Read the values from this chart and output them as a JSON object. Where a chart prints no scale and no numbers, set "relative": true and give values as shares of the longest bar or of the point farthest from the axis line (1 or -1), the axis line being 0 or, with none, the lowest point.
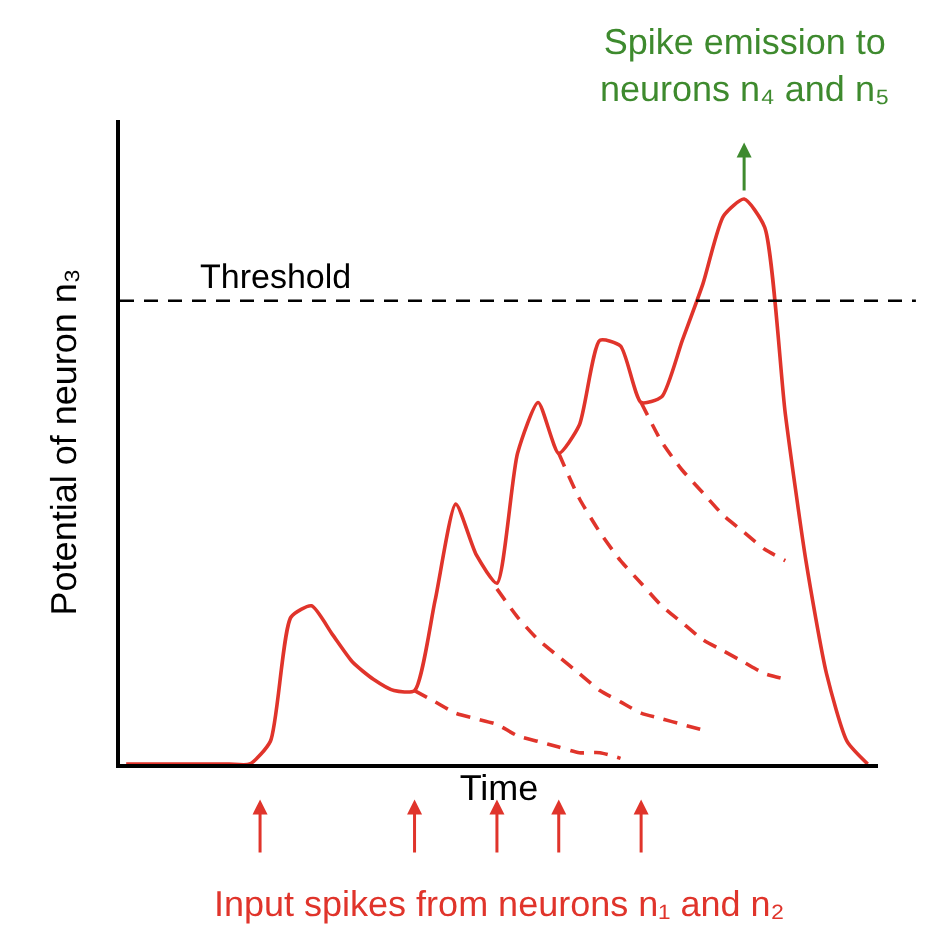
{
  "chart_data": {
    "type": "line",
    "relative": true,
    "xlabel": "Time",
    "ylabel": "Potential of neuron n₃",
    "categories": [
      null,
      null,
      null,
      null,
      null,
      null,
      null,
      null,
      null,
      null,
      null,
      null,
      null,
      null,
      null,
      null,
      null,
      null,
      null,
      null,
      null,
      null,
      null,
      null,
      null,
      null,
      null,
      null,
      null,
      null,
      null,
      null,
      null,
      null,
      null,
      null,
      null
    ],
    "series": [
      {
        "color": "#e0342b",
        "line_style": "solid",
        "values": [
          0,
          0,
          0,
          0,
          0,
          0,
          0,
          0.04,
          0.26,
          0.28,
          0.23,
          0.18,
          0.15,
          0.13,
          0.13,
          0.29,
          0.46,
          0.37,
          0.32,
          0.55,
          0.64,
          0.55,
          0.6,
          0.75,
          0.74,
          0.64,
          0.65,
          0.75,
          0.85,
          0.97,
          1.0,
          0.95,
          0.62,
          0.36,
          0.16,
          0.04,
          0
        ]
      },
      {
        "color": "#e0342b",
        "line_style": "dashed",
        "values": [
          null,
          null,
          null,
          null,
          null,
          null,
          null,
          null,
          null,
          null,
          null,
          null,
          null,
          null,
          0.13,
          0.11,
          0.09,
          0.08,
          0.07,
          0.05,
          0.04,
          0.03,
          0.02,
          0.02,
          0.01,
          null,
          null,
          null,
          null,
          null,
          null,
          null,
          null,
          null,
          null,
          null,
          null
        ]
      },
      {
        "color": "#e0342b",
        "line_style": "dashed",
        "values": [
          null,
          null,
          null,
          null,
          null,
          null,
          null,
          null,
          null,
          null,
          null,
          null,
          null,
          null,
          null,
          null,
          null,
          null,
          0.31,
          0.26,
          0.22,
          0.19,
          0.16,
          0.13,
          0.11,
          0.09,
          0.08,
          0.07,
          0.06,
          null,
          null,
          null,
          null,
          null,
          null,
          null,
          null
        ]
      },
      {
        "color": "#e0342b",
        "line_style": "dashed",
        "values": [
          null,
          null,
          null,
          null,
          null,
          null,
          null,
          null,
          null,
          null,
          null,
          null,
          null,
          null,
          null,
          null,
          null,
          null,
          null,
          null,
          null,
          0.55,
          0.47,
          0.41,
          0.36,
          0.32,
          0.28,
          0.25,
          0.22,
          0.2,
          0.18,
          0.16,
          0.15,
          null,
          null,
          null,
          null
        ]
      },
      {
        "color": "#e0342b",
        "line_style": "dashed",
        "values": [
          null,
          null,
          null,
          null,
          null,
          null,
          null,
          null,
          null,
          null,
          null,
          null,
          null,
          null,
          null,
          null,
          null,
          null,
          null,
          null,
          null,
          null,
          null,
          null,
          null,
          0.64,
          0.57,
          0.52,
          0.48,
          0.44,
          0.41,
          0.38,
          0.36,
          null,
          null,
          null,
          null
        ]
      }
    ],
    "ref_lines": [
      {
        "axis": "y",
        "value": 0.82,
        "label": "Threshold",
        "color": "#000000",
        "line_style": "dashed"
      }
    ],
    "annotations": [
      "Spike emission to neurons n₄ and n₅",
      "Input spikes from neurons n₁ and n₂"
    ]
  }
}
